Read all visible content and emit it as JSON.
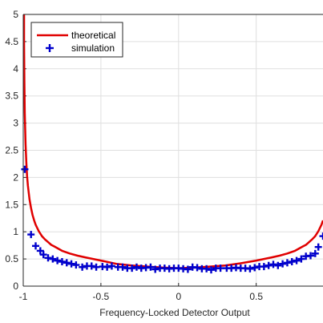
{
  "chart_data": {
    "type": "line",
    "title": "",
    "xlabel": "Frequency-Locked Detector Output",
    "ylabel": "",
    "xlim": [
      -1,
      0.93
    ],
    "ylim": [
      0,
      5
    ],
    "grid": true,
    "legend_position": "top-left",
    "x_ticks": [
      {
        "value": -1,
        "label": "-1"
      },
      {
        "value": -0.5,
        "label": "-0.5"
      },
      {
        "value": 0,
        "label": "0"
      },
      {
        "value": 0.5,
        "label": "0.5"
      }
    ],
    "y_ticks": [
      {
        "value": 0,
        "label": "0"
      },
      {
        "value": 0.5,
        "label": "0.5"
      },
      {
        "value": 1,
        "label": "1"
      },
      {
        "value": 1.5,
        "label": "1.5"
      },
      {
        "value": 2,
        "label": "2"
      },
      {
        "value": 2.5,
        "label": "2.5"
      },
      {
        "value": 3,
        "label": "3"
      },
      {
        "value": 3.5,
        "label": "3.5"
      },
      {
        "value": 4,
        "label": "4"
      },
      {
        "value": 4.5,
        "label": "4.5"
      },
      {
        "value": 5,
        "label": "5"
      }
    ],
    "series": [
      {
        "name": "theoretical",
        "kind": "line",
        "color": "#e00000",
        "x": [
          -0.995,
          -0.993,
          -0.99,
          -0.985,
          -0.98,
          -0.975,
          -0.97,
          -0.96,
          -0.95,
          -0.94,
          -0.93,
          -0.92,
          -0.9,
          -0.88,
          -0.86,
          -0.84,
          -0.82,
          -0.8,
          -0.75,
          -0.7,
          -0.65,
          -0.6,
          -0.5,
          -0.4,
          -0.3,
          -0.2,
          -0.1,
          0,
          0.1,
          0.2,
          0.3,
          0.4,
          0.5,
          0.55,
          0.6,
          0.65,
          0.7,
          0.75,
          0.8,
          0.82,
          0.84,
          0.86,
          0.88,
          0.9,
          0.91,
          0.92,
          0.93
        ],
        "y": [
          4.5,
          3.8,
          3.19,
          2.61,
          2.26,
          2.02,
          1.85,
          1.6,
          1.44,
          1.31,
          1.21,
          1.13,
          1.01,
          0.92,
          0.86,
          0.81,
          0.76,
          0.73,
          0.65,
          0.6,
          0.56,
          0.53,
          0.47,
          0.41,
          0.38,
          0.36,
          0.34,
          0.33,
          0.34,
          0.36,
          0.38,
          0.42,
          0.47,
          0.5,
          0.53,
          0.56,
          0.6,
          0.65,
          0.73,
          0.76,
          0.81,
          0.86,
          0.92,
          1.01,
          1.07,
          1.13,
          1.21
        ]
      },
      {
        "name": "simulation",
        "kind": "marker",
        "marker": "plus",
        "color": "#0000cc",
        "x": [
          -0.99,
          -0.95,
          -0.92,
          -0.89,
          -0.87,
          -0.84,
          -0.81,
          -0.78,
          -0.75,
          -0.72,
          -0.69,
          -0.66,
          -0.62,
          -0.59,
          -0.56,
          -0.53,
          -0.49,
          -0.46,
          -0.43,
          -0.39,
          -0.36,
          -0.33,
          -0.3,
          -0.27,
          -0.24,
          -0.21,
          -0.18,
          -0.15,
          -0.12,
          -0.09,
          -0.06,
          -0.03,
          0.0,
          0.03,
          0.06,
          0.09,
          0.12,
          0.15,
          0.18,
          0.21,
          0.24,
          0.27,
          0.31,
          0.34,
          0.37,
          0.4,
          0.43,
          0.46,
          0.49,
          0.52,
          0.55,
          0.58,
          0.61,
          0.64,
          0.67,
          0.7,
          0.73,
          0.76,
          0.79,
          0.82,
          0.85,
          0.88,
          0.9,
          0.93
        ],
        "y": [
          2.15,
          0.95,
          0.74,
          0.65,
          0.58,
          0.52,
          0.5,
          0.47,
          0.45,
          0.43,
          0.41,
          0.39,
          0.35,
          0.37,
          0.37,
          0.35,
          0.36,
          0.35,
          0.37,
          0.35,
          0.35,
          0.33,
          0.33,
          0.35,
          0.33,
          0.34,
          0.35,
          0.31,
          0.33,
          0.33,
          0.32,
          0.33,
          0.33,
          0.32,
          0.31,
          0.35,
          0.34,
          0.32,
          0.32,
          0.3,
          0.33,
          0.33,
          0.33,
          0.33,
          0.34,
          0.33,
          0.33,
          0.32,
          0.34,
          0.36,
          0.36,
          0.38,
          0.4,
          0.38,
          0.41,
          0.43,
          0.45,
          0.47,
          0.5,
          0.55,
          0.56,
          0.6,
          0.72,
          0.92
        ]
      }
    ]
  },
  "colors": {
    "background": "#ffffff",
    "axes": "#262626",
    "grid": "#dfdfdf",
    "theoretical": "#e00000",
    "simulation": "#0000cc"
  }
}
